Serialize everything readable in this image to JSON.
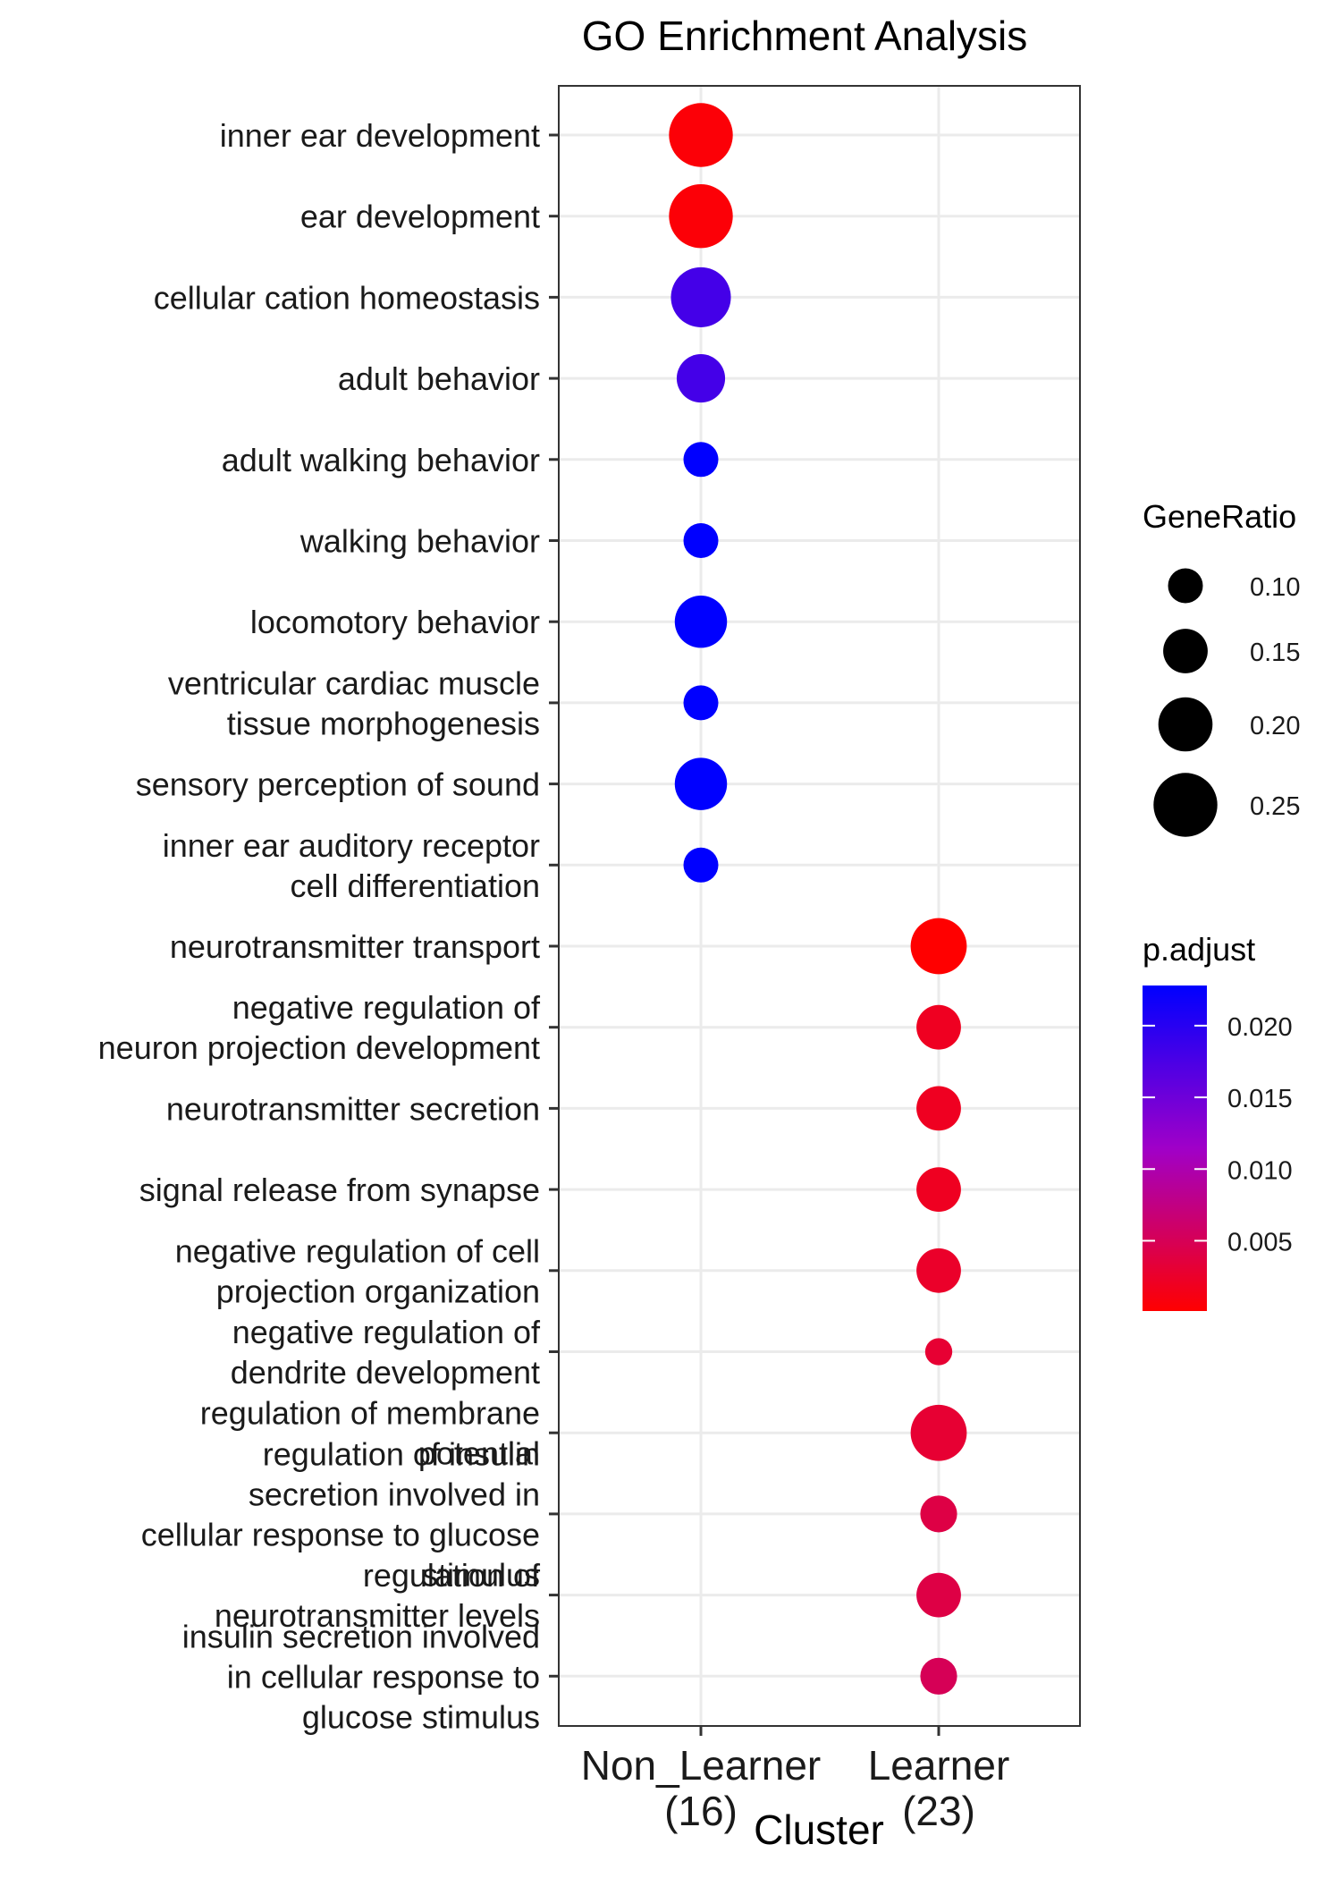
{
  "chart_data": {
    "type": "scatter",
    "title": "GO Enrichment Analysis",
    "xlabel": "Cluster",
    "ylabel": "",
    "clusters": [
      {
        "name": "Non_Learner",
        "count": "(16)"
      },
      {
        "name": "Learner",
        "count": "(23)"
      }
    ],
    "terms": [
      {
        "label": [
          "inner ear development"
        ],
        "cluster": 0,
        "gene_ratio": 0.25,
        "p_adjust": 0.0005
      },
      {
        "label": [
          "ear development"
        ],
        "cluster": 0,
        "gene_ratio": 0.25,
        "p_adjust": 0.0005
      },
      {
        "label": [
          "cellular cation homeostasis"
        ],
        "cluster": 0,
        "gene_ratio": 0.23,
        "p_adjust": 0.018
      },
      {
        "label": [
          "adult behavior"
        ],
        "cluster": 0,
        "gene_ratio": 0.17,
        "p_adjust": 0.018
      },
      {
        "label": [
          "adult walking behavior"
        ],
        "cluster": 0,
        "gene_ratio": 0.1,
        "p_adjust": 0.0228
      },
      {
        "label": [
          "walking behavior"
        ],
        "cluster": 0,
        "gene_ratio": 0.1,
        "p_adjust": 0.0228
      },
      {
        "label": [
          "locomotory behavior"
        ],
        "cluster": 0,
        "gene_ratio": 0.19,
        "p_adjust": 0.0228
      },
      {
        "label": [
          "ventricular cardiac muscle",
          "tissue morphogenesis"
        ],
        "cluster": 0,
        "gene_ratio": 0.1,
        "p_adjust": 0.0228
      },
      {
        "label": [
          "sensory perception of sound"
        ],
        "cluster": 0,
        "gene_ratio": 0.19,
        "p_adjust": 0.0228
      },
      {
        "label": [
          "inner ear auditory receptor",
          "cell differentiation"
        ],
        "cluster": 0,
        "gene_ratio": 0.1,
        "p_adjust": 0.0228
      },
      {
        "label": [
          "neurotransmitter transport"
        ],
        "cluster": 1,
        "gene_ratio": 0.21,
        "p_adjust": 0.0001
      },
      {
        "label": [
          "negative regulation of",
          "neuron projection development"
        ],
        "cluster": 1,
        "gene_ratio": 0.15,
        "p_adjust": 0.002
      },
      {
        "label": [
          "neurotransmitter secretion"
        ],
        "cluster": 1,
        "gene_ratio": 0.15,
        "p_adjust": 0.002
      },
      {
        "label": [
          "signal release from synapse"
        ],
        "cluster": 1,
        "gene_ratio": 0.15,
        "p_adjust": 0.002
      },
      {
        "label": [
          "negative regulation of cell",
          "projection organization"
        ],
        "cluster": 1,
        "gene_ratio": 0.15,
        "p_adjust": 0.0025
      },
      {
        "label": [
          "negative regulation of",
          "dendrite development"
        ],
        "cluster": 1,
        "gene_ratio": 0.06,
        "p_adjust": 0.003
      },
      {
        "label": [
          "regulation of membrane",
          "potential"
        ],
        "cluster": 1,
        "gene_ratio": 0.21,
        "p_adjust": 0.003
      },
      {
        "label": [
          "regulation of insulin",
          "secretion involved in",
          "cellular response to glucose",
          "stimulus"
        ],
        "cluster": 1,
        "gene_ratio": 0.11,
        "p_adjust": 0.004
      },
      {
        "label": [
          "regulation of",
          "neurotransmitter levels"
        ],
        "cluster": 1,
        "gene_ratio": 0.15,
        "p_adjust": 0.004
      },
      {
        "label": [
          "insulin secretion involved",
          "in cellular response to",
          "glucose stimulus"
        ],
        "cluster": 1,
        "gene_ratio": 0.11,
        "p_adjust": 0.005
      }
    ],
    "legend_size": {
      "title": "GeneRatio",
      "values": [
        0.1,
        0.15,
        0.2,
        0.25
      ],
      "labels": [
        "0.10",
        "0.15",
        "0.20",
        "0.25"
      ]
    },
    "legend_color": {
      "title": "p.adjust",
      "range": [
        0.0001,
        0.0228
      ],
      "values": [
        0.005,
        0.01,
        0.015,
        0.02
      ],
      "labels": [
        "0.005",
        "0.010",
        "0.015",
        "0.020"
      ],
      "low_color": "#ff0000",
      "mid_color": "#a000c8",
      "high_color": "#0000ff"
    },
    "grid": true,
    "legend_position": "right"
  }
}
